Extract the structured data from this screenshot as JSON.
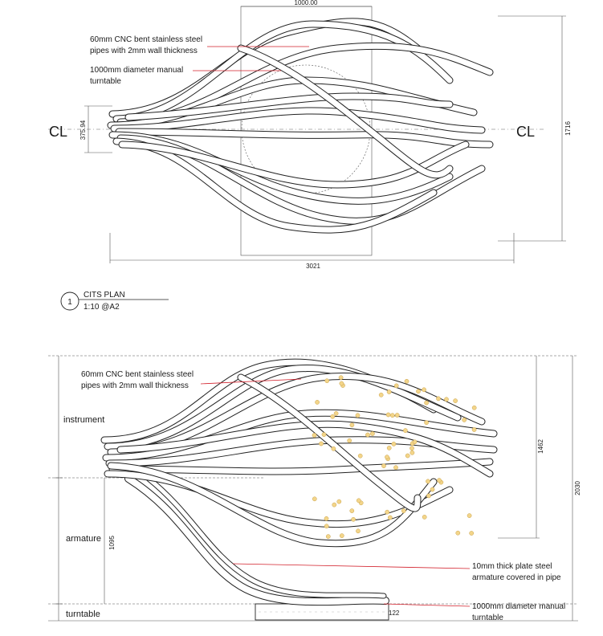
{
  "plan": {
    "dim_width_top": "1000.00",
    "dim_height_left": "375.94",
    "dim_height_right": "1716",
    "dim_width_bottom": "3021",
    "centerline_left": "CL",
    "centerline_right": "CL",
    "note_pipes_line1": "60mm CNC bent stainless steel",
    "note_pipes_line2": "pipes with 2mm wall thickness",
    "note_turntable_line1": "1000mm diameter manual",
    "note_turntable_line2": "turntable"
  },
  "title_block": {
    "number": "1",
    "title": "CITS PLAN",
    "scale": "1:10 @A2"
  },
  "elevation": {
    "note_pipes_line1": "60mm CNC bent stainless steel",
    "note_pipes_line2": "pipes with 2mm wall thickness",
    "note_plate_line1": "10mm thick plate steel",
    "note_plate_line2": "armature covered in pipe",
    "note_turntable_line1": "1000mm diameter manual",
    "note_turntable_line2": "turntable",
    "section_instrument": "instrument",
    "section_armature": "armature",
    "section_turntable": "turntable",
    "dim_1462": "1462",
    "dim_2030": "2030",
    "dim_1095": "1095",
    "dim_122": "122"
  },
  "colors": {
    "leader": "#d21f2a",
    "hole": "#f3d58a",
    "line": "#222222"
  }
}
